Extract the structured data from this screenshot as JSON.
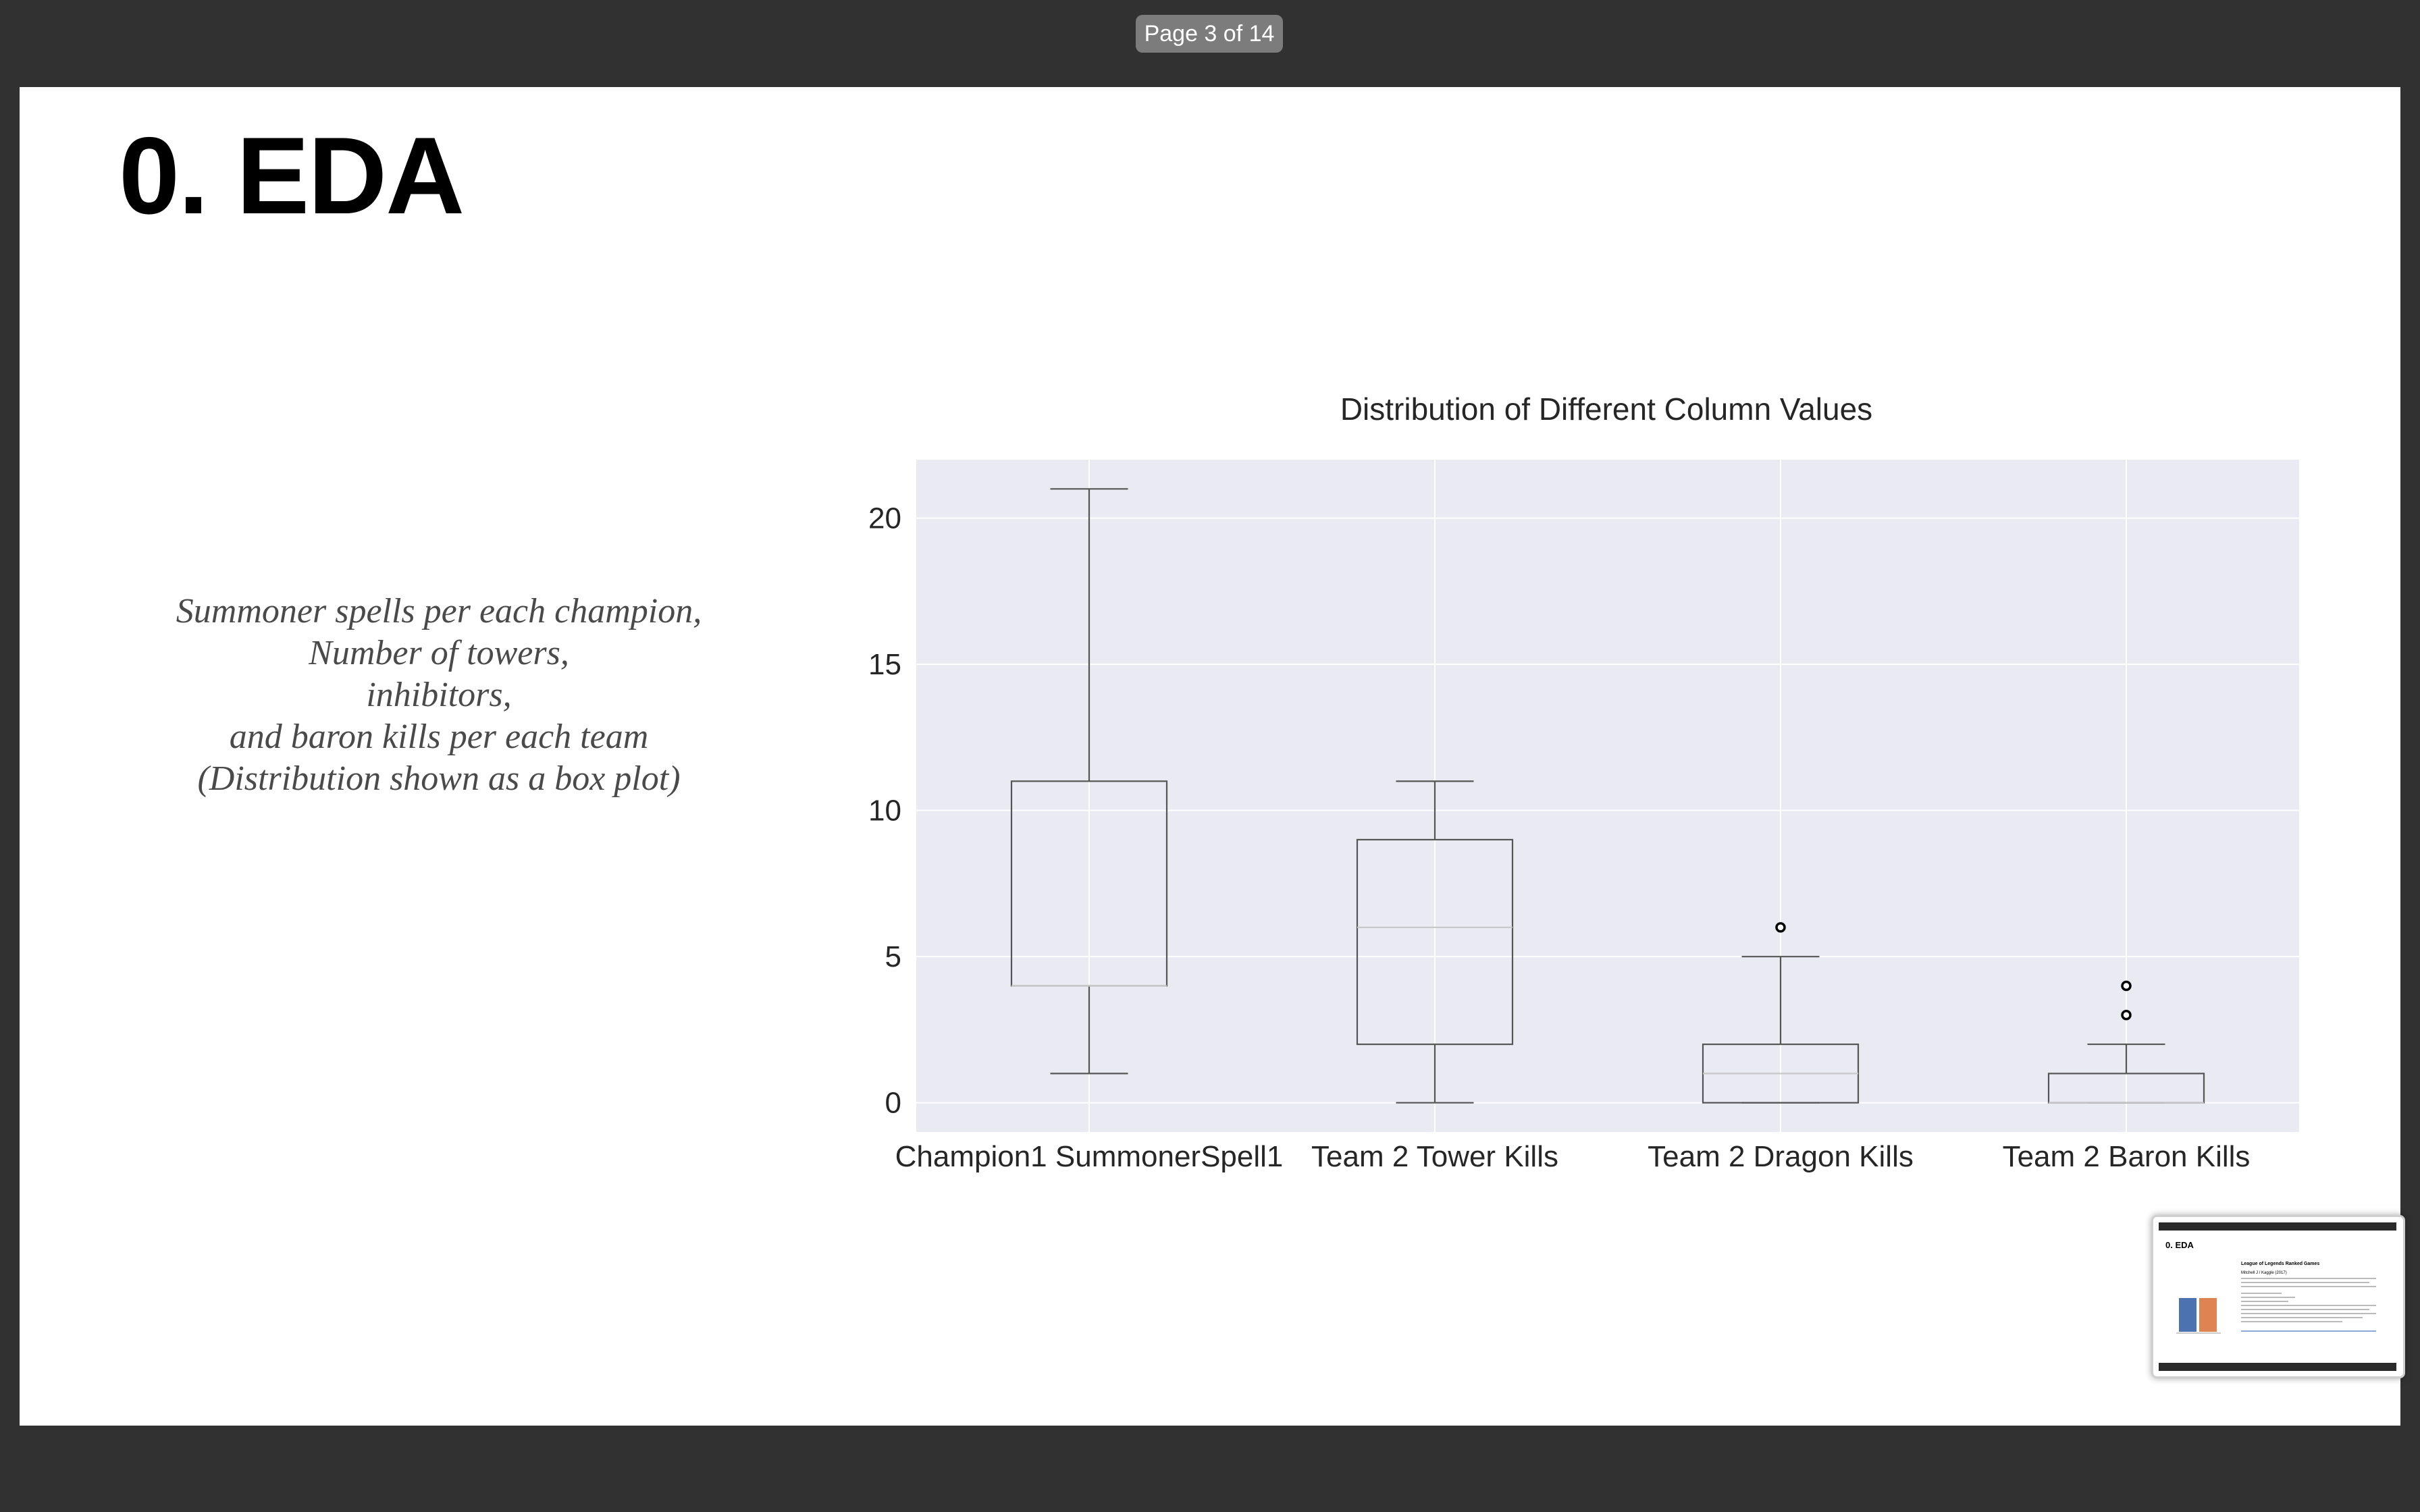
{
  "viewer": {
    "page_indicator": "Page 3 of 14"
  },
  "slide": {
    "title": "0. EDA",
    "caption_lines": [
      "Summoner spells per each champion,",
      "Number of towers,",
      "inhibitors,",
      "and baron kills per each team",
      "(Distribution shown as a box plot)"
    ]
  },
  "chart_data": {
    "type": "box",
    "title": "Distribution of Different Column Values",
    "xlabel": "",
    "ylabel": "",
    "ylim": [
      -1,
      22
    ],
    "yticks": [
      0,
      5,
      10,
      15,
      20
    ],
    "grid": true,
    "categories": [
      "Champion1 SummonerSpell1",
      "Team 2 Tower Kills",
      "Team 2 Dragon Kills",
      "Team 2 Baron Kills"
    ],
    "boxes": [
      {
        "name": "Champion1 SummonerSpell1",
        "whisker_low": 1,
        "q1": 4,
        "median": 4,
        "q3": 11,
        "whisker_high": 21,
        "outliers": []
      },
      {
        "name": "Team 2 Tower Kills",
        "whisker_low": 0,
        "q1": 2,
        "median": 6,
        "q3": 9,
        "whisker_high": 11,
        "outliers": []
      },
      {
        "name": "Team 2 Dragon Kills",
        "whisker_low": 0,
        "q1": 0,
        "median": 1,
        "q3": 2,
        "whisker_high": 5,
        "outliers": [
          6
        ]
      },
      {
        "name": "Team 2 Baron Kills",
        "whisker_low": 0,
        "q1": 0,
        "median": 0,
        "q3": 1,
        "whisker_high": 2,
        "outliers": [
          3,
          4
        ]
      }
    ],
    "colors": {
      "plot_background": "#eaeaf2",
      "grid": "#ffffff",
      "box_line": "#555555",
      "median_line": "#c8c8c8",
      "outlier_edge": "#000000"
    }
  },
  "thumbnail": {
    "title": "0. EDA",
    "heading": "League of Legends Ranked Games",
    "subtitle": "Mitchell J / Kaggle (2017)"
  }
}
